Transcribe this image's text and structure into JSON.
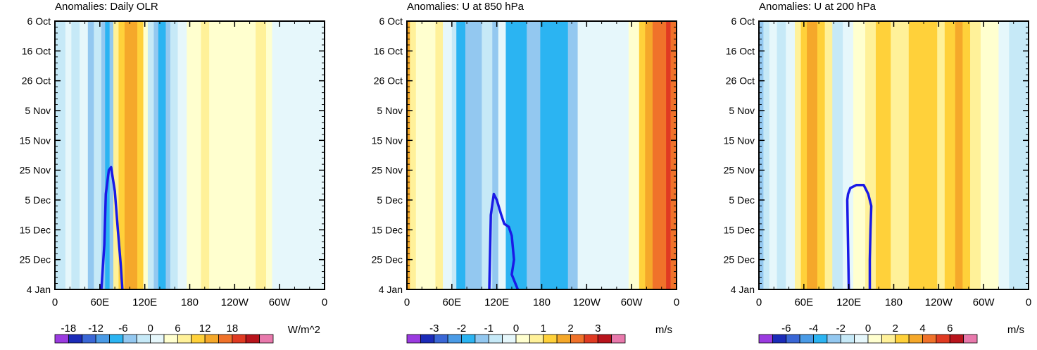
{
  "chart_data": [
    {
      "type": "heatmap",
      "title": "Anomalies: Daily OLR",
      "units": "W/m^2",
      "x_ticks": [
        "0",
        "60E",
        "120E",
        "180",
        "120W",
        "60W",
        "0"
      ],
      "y_ticks": [
        "6 Oct",
        "16 Oct",
        "26 Oct",
        "5 Nov",
        "15 Nov",
        "25 Nov",
        "5 Dec",
        "15 Dec",
        "25 Dec",
        "4 Jan"
      ],
      "colorbar_labels": [
        "-18",
        "-12",
        "-6",
        "0",
        "6",
        "12",
        "18"
      ],
      "colorbar_label_positions": [
        1,
        3,
        5,
        7,
        9,
        11,
        13
      ],
      "colorbar_colors": [
        "#9b3be0",
        "#1b2bb8",
        "#3a67d6",
        "#4a9be6",
        "#2bb4f2",
        "#93c8f0",
        "#c6e9f7",
        "#e6f7fb",
        "#ffffcf",
        "#fff199",
        "#ffd13a",
        "#f5a82a",
        "#f0722a",
        "#e03a22",
        "#b8141c",
        "#e879ac"
      ],
      "bands": [
        {
          "x0": 0,
          "x1": 14,
          "c": "#c6e9f7"
        },
        {
          "x0": 14,
          "x1": 22,
          "c": "#e6f7fb"
        },
        {
          "x0": 22,
          "x1": 33,
          "c": "#c6e9f7"
        },
        {
          "x0": 33,
          "x1": 44,
          "c": "#e6f7fb"
        },
        {
          "x0": 44,
          "x1": 52,
          "c": "#93c8f0"
        },
        {
          "x0": 52,
          "x1": 62,
          "c": "#c6e9f7"
        },
        {
          "x0": 62,
          "x1": 67,
          "c": "#93c8f0"
        },
        {
          "x0": 67,
          "x1": 73,
          "c": "#2bb4f2"
        },
        {
          "x0": 73,
          "x1": 78,
          "c": "#93c8f0"
        },
        {
          "x0": 78,
          "x1": 85,
          "c": "#fff199"
        },
        {
          "x0": 85,
          "x1": 93,
          "c": "#ffd13a"
        },
        {
          "x0": 93,
          "x1": 110,
          "c": "#f5a82a"
        },
        {
          "x0": 110,
          "x1": 118,
          "c": "#ffd13a"
        },
        {
          "x0": 118,
          "x1": 124,
          "c": "#ffffcf"
        },
        {
          "x0": 124,
          "x1": 132,
          "c": "#c6e9f7"
        },
        {
          "x0": 132,
          "x1": 138,
          "c": "#93c8f0"
        },
        {
          "x0": 138,
          "x1": 148,
          "c": "#2bb4f2"
        },
        {
          "x0": 148,
          "x1": 154,
          "c": "#93c8f0"
        },
        {
          "x0": 154,
          "x1": 164,
          "c": "#c6e9f7"
        },
        {
          "x0": 164,
          "x1": 176,
          "c": "#e6f7fb"
        },
        {
          "x0": 176,
          "x1": 195,
          "c": "#ffffcf"
        },
        {
          "x0": 195,
          "x1": 206,
          "c": "#fff199"
        },
        {
          "x0": 206,
          "x1": 268,
          "c": "#ffffcf"
        },
        {
          "x0": 268,
          "x1": 282,
          "c": "#fff199"
        },
        {
          "x0": 282,
          "x1": 290,
          "c": "#ffffcf"
        },
        {
          "x0": 290,
          "x1": 304,
          "c": "#e6f7fb"
        },
        {
          "x0": 304,
          "x1": 360,
          "c": "#e6f7fb"
        }
      ],
      "contour_lon": [
        62,
        66,
        68,
        72,
        75,
        80,
        84,
        88,
        90
      ],
      "contour_day": [
        90,
        75,
        58,
        50,
        49,
        57,
        70,
        82,
        90
      ]
    },
    {
      "type": "heatmap",
      "title": "Anomalies: U at 850 hPa",
      "units": "m/s",
      "x_ticks": [
        "0",
        "60E",
        "120E",
        "180",
        "120W",
        "60W",
        "0"
      ],
      "y_ticks": [
        "6 Oct",
        "16 Oct",
        "26 Oct",
        "5 Nov",
        "15 Nov",
        "25 Nov",
        "5 Dec",
        "15 Dec",
        "25 Dec",
        "4 Jan"
      ],
      "colorbar_labels": [
        "-3",
        "-2",
        "-1",
        "0",
        "1",
        "2",
        "3"
      ],
      "colorbar_label_positions": [
        2,
        4,
        6,
        8,
        10,
        12,
        14
      ],
      "colorbar_colors": [
        "#9b3be0",
        "#1b2bb8",
        "#3a67d6",
        "#4a9be6",
        "#2bb4f2",
        "#93c8f0",
        "#c6e9f7",
        "#e6f7fb",
        "#ffffcf",
        "#fff199",
        "#ffd13a",
        "#f5a82a",
        "#f0722a",
        "#e03a22",
        "#b8141c",
        "#e879ac"
      ],
      "bands": [
        {
          "x0": 0,
          "x1": 4,
          "c": "#f5a82a"
        },
        {
          "x0": 4,
          "x1": 12,
          "c": "#fff199"
        },
        {
          "x0": 12,
          "x1": 38,
          "c": "#ffffcf"
        },
        {
          "x0": 38,
          "x1": 48,
          "c": "#fff199"
        },
        {
          "x0": 48,
          "x1": 60,
          "c": "#e6f7fb"
        },
        {
          "x0": 60,
          "x1": 66,
          "c": "#c6e9f7"
        },
        {
          "x0": 66,
          "x1": 78,
          "c": "#2bb4f2"
        },
        {
          "x0": 78,
          "x1": 100,
          "c": "#93c8f0"
        },
        {
          "x0": 100,
          "x1": 114,
          "c": "#c6e9f7"
        },
        {
          "x0": 114,
          "x1": 122,
          "c": "#93c8f0"
        },
        {
          "x0": 122,
          "x1": 132,
          "c": "#e6f7fb"
        },
        {
          "x0": 132,
          "x1": 160,
          "c": "#2bb4f2"
        },
        {
          "x0": 160,
          "x1": 178,
          "c": "#93c8f0"
        },
        {
          "x0": 178,
          "x1": 215,
          "c": "#2bb4f2"
        },
        {
          "x0": 215,
          "x1": 228,
          "c": "#93c8f0"
        },
        {
          "x0": 228,
          "x1": 296,
          "c": "#e6f7fb"
        },
        {
          "x0": 296,
          "x1": 310,
          "c": "#ffffcf"
        },
        {
          "x0": 310,
          "x1": 318,
          "c": "#ffd13a"
        },
        {
          "x0": 318,
          "x1": 328,
          "c": "#f5a82a"
        },
        {
          "x0": 328,
          "x1": 346,
          "c": "#f0722a"
        },
        {
          "x0": 346,
          "x1": 352,
          "c": "#e03a22"
        },
        {
          "x0": 352,
          "x1": 360,
          "c": "#f0722a"
        }
      ],
      "contour_lon": [
        110,
        112,
        116,
        120,
        126,
        130,
        136,
        140,
        143,
        140,
        148
      ],
      "contour_day": [
        90,
        65,
        58,
        60,
        65,
        68,
        69,
        72,
        80,
        85,
        90
      ]
    },
    {
      "type": "heatmap",
      "title": "Anomalies: U at 200 hPa",
      "units": "m/s",
      "x_ticks": [
        "0",
        "60E",
        "120E",
        "180",
        "120W",
        "60W",
        "0"
      ],
      "y_ticks": [
        "6 Oct",
        "16 Oct",
        "26 Oct",
        "5 Nov",
        "15 Nov",
        "25 Nov",
        "5 Dec",
        "15 Dec",
        "25 Dec",
        "4 Jan"
      ],
      "colorbar_labels": [
        "-6",
        "-4",
        "-2",
        "0",
        "2",
        "4",
        "6"
      ],
      "colorbar_label_positions": [
        2,
        4,
        6,
        8,
        10,
        12,
        14
      ],
      "colorbar_colors": [
        "#9b3be0",
        "#1b2bb8",
        "#3a67d6",
        "#4a9be6",
        "#2bb4f2",
        "#93c8f0",
        "#c6e9f7",
        "#e6f7fb",
        "#ffffcf",
        "#fff199",
        "#ffd13a",
        "#f5a82a",
        "#f0722a",
        "#e03a22",
        "#b8141c",
        "#e879ac"
      ],
      "bands": [
        {
          "x0": 0,
          "x1": 6,
          "c": "#93c8f0"
        },
        {
          "x0": 6,
          "x1": 14,
          "c": "#c6e9f7"
        },
        {
          "x0": 14,
          "x1": 24,
          "c": "#e6f7fb"
        },
        {
          "x0": 24,
          "x1": 36,
          "c": "#c6e9f7"
        },
        {
          "x0": 36,
          "x1": 48,
          "c": "#e6f7fb"
        },
        {
          "x0": 48,
          "x1": 56,
          "c": "#fff199"
        },
        {
          "x0": 56,
          "x1": 64,
          "c": "#ffd13a"
        },
        {
          "x0": 64,
          "x1": 78,
          "c": "#f5a82a"
        },
        {
          "x0": 78,
          "x1": 88,
          "c": "#ffd13a"
        },
        {
          "x0": 88,
          "x1": 98,
          "c": "#fff199"
        },
        {
          "x0": 98,
          "x1": 112,
          "c": "#c6e9f7"
        },
        {
          "x0": 112,
          "x1": 126,
          "c": "#e6f7fb"
        },
        {
          "x0": 126,
          "x1": 142,
          "c": "#ffffcf"
        },
        {
          "x0": 142,
          "x1": 156,
          "c": "#fff199"
        },
        {
          "x0": 156,
          "x1": 176,
          "c": "#ffd13a"
        },
        {
          "x0": 176,
          "x1": 200,
          "c": "#fff199"
        },
        {
          "x0": 200,
          "x1": 238,
          "c": "#ffd13a"
        },
        {
          "x0": 238,
          "x1": 248,
          "c": "#fff199"
        },
        {
          "x0": 248,
          "x1": 262,
          "c": "#ffd13a"
        },
        {
          "x0": 262,
          "x1": 272,
          "c": "#f5a82a"
        },
        {
          "x0": 272,
          "x1": 282,
          "c": "#ffd13a"
        },
        {
          "x0": 282,
          "x1": 296,
          "c": "#fff199"
        },
        {
          "x0": 296,
          "x1": 320,
          "c": "#ffffcf"
        },
        {
          "x0": 320,
          "x1": 334,
          "c": "#e6f7fb"
        },
        {
          "x0": 334,
          "x1": 360,
          "c": "#c6e9f7"
        }
      ],
      "contour_lon": [
        120,
        119,
        118,
        119,
        122,
        130,
        140,
        146,
        150,
        149,
        148,
        148
      ],
      "contour_day": [
        90,
        75,
        60,
        58,
        56,
        55,
        55,
        58,
        62,
        70,
        80,
        90
      ]
    }
  ]
}
